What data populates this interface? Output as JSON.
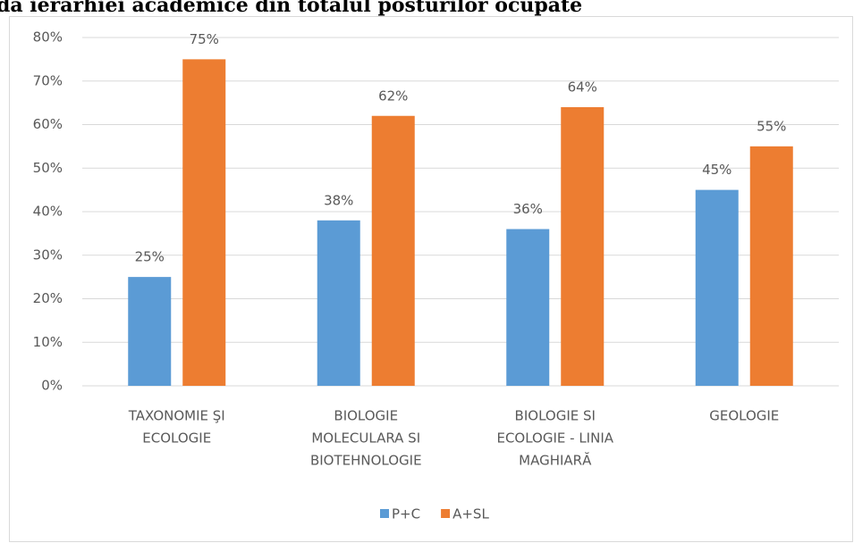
{
  "chart_data": {
    "type": "bar",
    "title": "da ierarhiei academice din totalul posturilor ocupate",
    "categories": [
      [
        "TAXONOMIE  ŞI",
        "ECOLOGIE"
      ],
      [
        "BIOLOGIE",
        "MOLECULARA SI",
        "BIOTEHNOLOGIE"
      ],
      [
        "BIOLOGIE SI",
        "ECOLOGIE - LINIA",
        "MAGHIARĂ"
      ],
      [
        "GEOLOGIE"
      ]
    ],
    "series": [
      {
        "name": "P+C",
        "color": "#5b9bd5",
        "values": [
          25,
          38,
          36,
          45
        ],
        "value_labels": [
          "25%",
          "38%",
          "36%",
          "45%"
        ]
      },
      {
        "name": "A+SL",
        "color": "#ed7d31",
        "values": [
          75,
          62,
          64,
          55
        ],
        "value_labels": [
          "75%",
          "62%",
          "64%",
          "55%"
        ]
      }
    ],
    "ylim": [
      0,
      80
    ],
    "yticks": [
      {
        "value": 0,
        "label": "0%"
      },
      {
        "value": 10,
        "label": "10%"
      },
      {
        "value": 20,
        "label": "20%"
      },
      {
        "value": 30,
        "label": "30%"
      },
      {
        "value": 40,
        "label": "40%"
      },
      {
        "value": 50,
        "label": "50%"
      },
      {
        "value": 60,
        "label": "60%"
      },
      {
        "value": 70,
        "label": "70%"
      },
      {
        "value": 80,
        "label": "80%"
      }
    ],
    "grid": true,
    "legend": "bottom"
  }
}
